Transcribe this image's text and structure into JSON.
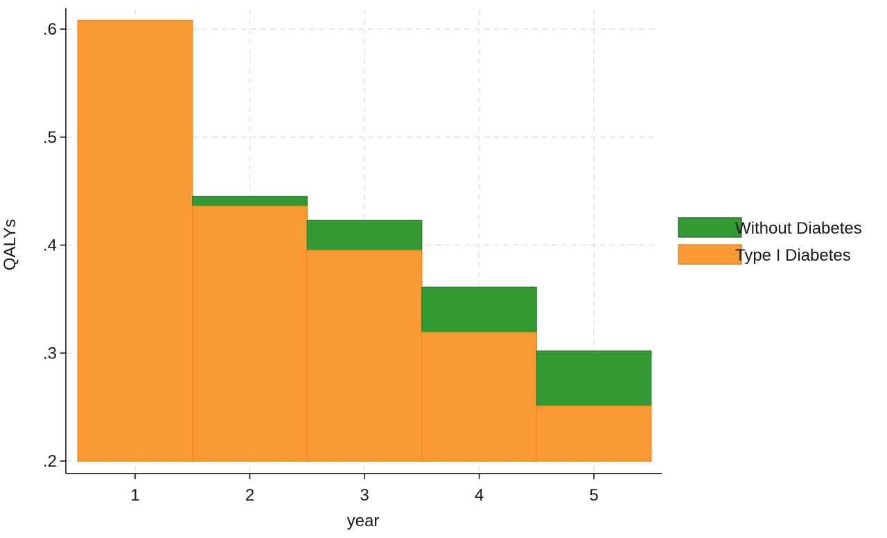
{
  "chart_data": {
    "type": "bar",
    "layout": "overlapping-step-bars",
    "title": "",
    "xlabel": "year",
    "ylabel": "QALYs",
    "categories": [
      "1",
      "2",
      "3",
      "4",
      "5"
    ],
    "x": [
      1,
      2,
      3,
      4,
      5
    ],
    "ylim": [
      0.2,
      0.6
    ],
    "yticks": [
      0.2,
      0.3,
      0.4,
      0.5,
      0.6
    ],
    "ytick_labels": [
      ".2",
      ".3",
      ".4",
      ".5",
      ".6"
    ],
    "xtick_labels": [
      "1",
      "2",
      "3",
      "4",
      "5"
    ],
    "grid": true,
    "legend_position": "right",
    "series": [
      {
        "name": "Without Diabetes",
        "color": "#339933",
        "values": [
          0.608,
          0.445,
          0.423,
          0.361,
          0.302
        ]
      },
      {
        "name": "Type I Diabetes",
        "color": "#FA9A34",
        "values": [
          0.608,
          0.436,
          0.395,
          0.319,
          0.251
        ]
      }
    ]
  }
}
